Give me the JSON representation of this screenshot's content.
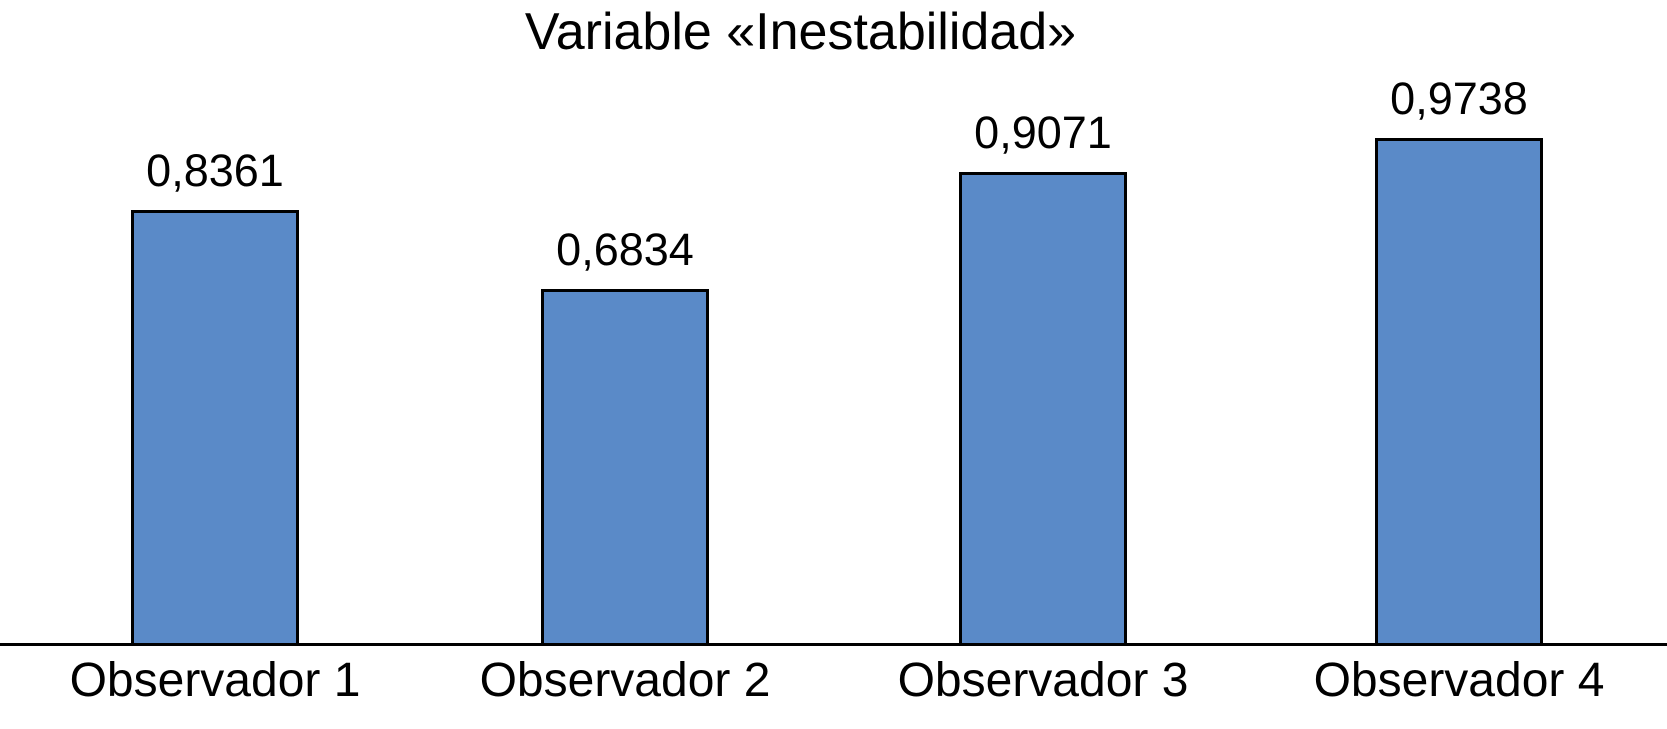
{
  "chart_data": {
    "type": "bar",
    "title": "Variable «Inestabilidad»",
    "categories": [
      "Observador 1",
      "Observador 2",
      "Observador 3",
      "Observador 4"
    ],
    "values": [
      0.8361,
      0.6834,
      0.9071,
      0.9738
    ],
    "value_labels": [
      "0,8361",
      "0,6834",
      "0,9071",
      "0,9738"
    ],
    "xlabel": "",
    "ylabel": "",
    "ylim": [
      0,
      1.23
    ],
    "grid": false,
    "legend_position": "none",
    "y_axis_visible": false,
    "x_axis_visible": true,
    "decimal_separator": ",",
    "colors": {
      "bar_fill": "#5A8AC8",
      "bar_border": "#000000",
      "axis_line": "#000000",
      "text": "#000000",
      "background": "#FFFFFF"
    }
  }
}
